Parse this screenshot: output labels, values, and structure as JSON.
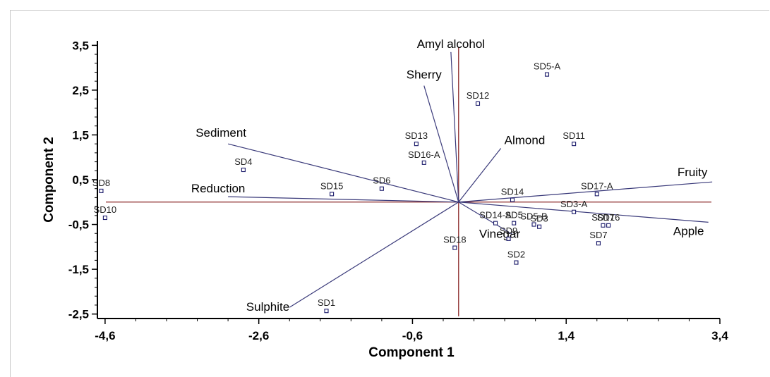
{
  "chart_data": {
    "type": "scatter",
    "subtype": "biplot",
    "title": "",
    "xlabel": "Component 1",
    "ylabel": "Component 2",
    "xlim": [
      -4.7,
      3.4
    ],
    "ylim": [
      -2.6,
      3.6
    ],
    "x_ticks": [
      -4.6,
      -2.6,
      -0.6,
      1.4,
      3.4
    ],
    "x_tick_labels": [
      "-4,6",
      "-2,6",
      "-0,6",
      "1,4",
      "3,4"
    ],
    "y_ticks": [
      3.5,
      2.5,
      1.5,
      0.5,
      -0.5,
      -1.5,
      -2.5
    ],
    "y_tick_labels": [
      "3,5",
      "2,5",
      "1,5",
      "0,5",
      "-0,5",
      "-1,5",
      "-2,5"
    ],
    "grid": false,
    "zero_lines_color": "#8b2a2a",
    "vector_color": "#3a3a7a",
    "marker_color": "#1a1a6a",
    "vectors": [
      {
        "label": "Amyl alcohol",
        "x": -0.1,
        "y": 3.35
      },
      {
        "label": "Sherry",
        "x": -0.45,
        "y": 2.6
      },
      {
        "label": "Almond",
        "x": 0.55,
        "y": 1.2
      },
      {
        "label": "Sediment",
        "x": -3.0,
        "y": 1.3
      },
      {
        "label": "Reduction",
        "x": -3.0,
        "y": 0.12
      },
      {
        "label": "Fruity",
        "x": 3.3,
        "y": 0.45
      },
      {
        "label": "Apple",
        "x": 3.25,
        "y": -0.45
      },
      {
        "label": "Vinegar",
        "x": 0.7,
        "y": -0.72
      },
      {
        "label": "Sulphite",
        "x": -2.2,
        "y": -2.35
      }
    ],
    "points": [
      {
        "label": "SD5-A",
        "x": 1.15,
        "y": 2.85
      },
      {
        "label": "SD12",
        "x": 0.25,
        "y": 2.2
      },
      {
        "label": "SD13",
        "x": -0.55,
        "y": 1.3
      },
      {
        "label": "SD11",
        "x": 1.5,
        "y": 1.3
      },
      {
        "label": "SD16-A",
        "x": -0.45,
        "y": 0.88
      },
      {
        "label": "SD4",
        "x": -2.8,
        "y": 0.72
      },
      {
        "label": "SD8",
        "x": -4.65,
        "y": 0.25
      },
      {
        "label": "SD6",
        "x": -1.0,
        "y": 0.3
      },
      {
        "label": "SD15",
        "x": -1.65,
        "y": 0.18
      },
      {
        "label": "SD10",
        "x": -4.6,
        "y": -0.35
      },
      {
        "label": "SD14",
        "x": 0.7,
        "y": 0.05
      },
      {
        "label": "SD17-A",
        "x": 1.8,
        "y": 0.18
      },
      {
        "label": "SD3-A",
        "x": 1.5,
        "y": -0.22
      },
      {
        "label": "SD14-A",
        "x": 0.48,
        "y": -0.47
      },
      {
        "label": "SD5",
        "x": 0.72,
        "y": -0.47
      },
      {
        "label": "SD5-B",
        "x": 0.98,
        "y": -0.5
      },
      {
        "label": "SD3",
        "x": 1.05,
        "y": -0.55
      },
      {
        "label": "SD9",
        "x": 0.65,
        "y": -0.82
      },
      {
        "label": "SD17",
        "x": 1.88,
        "y": -0.52
      },
      {
        "label": "SD16",
        "x": 1.95,
        "y": -0.52
      },
      {
        "label": "SD7",
        "x": 1.82,
        "y": -0.92
      },
      {
        "label": "SD18",
        "x": -0.05,
        "y": -1.02
      },
      {
        "label": "SD2",
        "x": 0.75,
        "y": -1.35
      },
      {
        "label": "SD1",
        "x": -1.72,
        "y": -2.43
      }
    ]
  }
}
